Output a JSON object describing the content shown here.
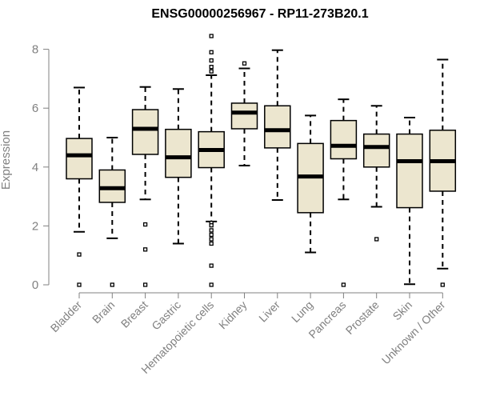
{
  "chart_data": {
    "type": "boxplot",
    "title": "ENSG00000256967 - RP11-273B20.1",
    "xlabel": "",
    "ylabel": "Expression",
    "ylim": [
      0,
      8.5
    ],
    "yticks": [
      0,
      2,
      4,
      6,
      8
    ],
    "colors": {
      "box_fill": "#ece6cf",
      "stroke": "#000000",
      "axis": "#808080"
    },
    "categories": [
      "Bladder",
      "Brain",
      "Breast",
      "Gastric",
      "Hematopoietic cells",
      "Kidney",
      "Liver",
      "Lung",
      "Pancreas",
      "Prostate",
      "Skin",
      "Unknown / Other"
    ],
    "boxes": [
      {
        "name": "Bladder",
        "min": 1.8,
        "q1": 3.6,
        "median": 4.4,
        "q3": 4.97,
        "max": 6.7,
        "outliers": [
          1.03,
          0.0
        ]
      },
      {
        "name": "Brain",
        "min": 1.58,
        "q1": 2.8,
        "median": 3.28,
        "q3": 3.9,
        "max": 5.0,
        "outliers": [
          0.0
        ]
      },
      {
        "name": "Breast",
        "min": 2.9,
        "q1": 4.43,
        "median": 5.3,
        "q3": 5.95,
        "max": 6.72,
        "outliers": [
          2.05,
          1.2,
          0.0
        ]
      },
      {
        "name": "Gastric",
        "min": 1.4,
        "q1": 3.65,
        "median": 4.33,
        "q3": 5.28,
        "max": 6.65,
        "outliers": []
      },
      {
        "name": "Hematopoietic cells",
        "min": 2.15,
        "q1": 3.98,
        "median": 4.58,
        "q3": 5.2,
        "max": 7.12,
        "outliers": [
          8.45,
          7.9,
          7.62,
          7.4,
          7.25,
          2.1,
          2.02,
          1.85,
          1.7,
          1.55,
          1.4,
          0.65,
          0.0
        ]
      },
      {
        "name": "Kidney",
        "min": 4.05,
        "q1": 5.3,
        "median": 5.85,
        "q3": 6.17,
        "max": 7.35,
        "outliers": [
          7.52
        ]
      },
      {
        "name": "Liver",
        "min": 2.88,
        "q1": 4.65,
        "median": 5.25,
        "q3": 6.08,
        "max": 7.97,
        "outliers": []
      },
      {
        "name": "Lung",
        "min": 1.1,
        "q1": 2.45,
        "median": 3.68,
        "q3": 4.8,
        "max": 5.75,
        "outliers": []
      },
      {
        "name": "Pancreas",
        "min": 2.9,
        "q1": 4.28,
        "median": 4.72,
        "q3": 5.58,
        "max": 6.3,
        "outliers": [
          0.0
        ]
      },
      {
        "name": "Prostate",
        "min": 2.65,
        "q1": 4.0,
        "median": 4.68,
        "q3": 5.12,
        "max": 6.08,
        "outliers": [
          1.55
        ]
      },
      {
        "name": "Skin",
        "min": 0.02,
        "q1": 2.62,
        "median": 4.2,
        "q3": 5.12,
        "max": 5.68,
        "outliers": []
      },
      {
        "name": "Unknown / Other",
        "min": 0.55,
        "q1": 3.18,
        "median": 4.2,
        "q3": 5.25,
        "max": 7.65,
        "outliers": [
          0.0
        ]
      }
    ]
  }
}
